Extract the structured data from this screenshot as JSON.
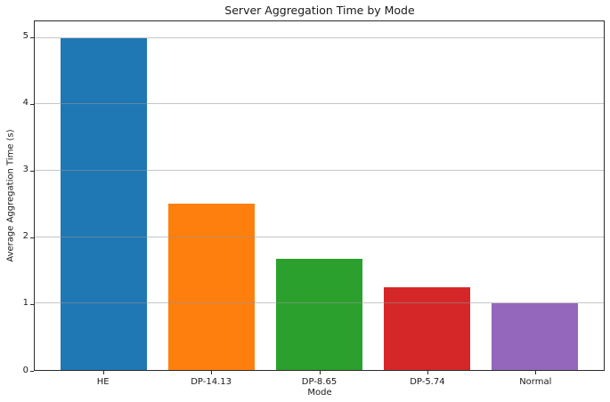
{
  "chart_data": {
    "type": "bar",
    "title": "Server Aggregation Time by Mode",
    "xlabel": "Mode",
    "ylabel": "Average Aggregation Time (s)",
    "categories": [
      "HE",
      "DP-14.13",
      "DP-8.65",
      "DP-5.74",
      "Normal"
    ],
    "values": [
      5.0,
      2.5,
      1.67,
      1.25,
      1.0
    ],
    "bar_colors": [
      "#1f77b4",
      "#ff7f0e",
      "#2ca02c",
      "#d62728",
      "#9467bd"
    ],
    "yticks": [
      0,
      1,
      2,
      3,
      4,
      5
    ],
    "ylim": [
      0,
      5.25
    ],
    "xlim": [
      -0.64,
      4.64
    ],
    "bar_width": 0.8,
    "grid": "horizontal-on-top",
    "legend": "none",
    "grid_color": "#c4c4c4",
    "spine_color": "#2b2b2b",
    "text_color": "#1a1a1a"
  }
}
